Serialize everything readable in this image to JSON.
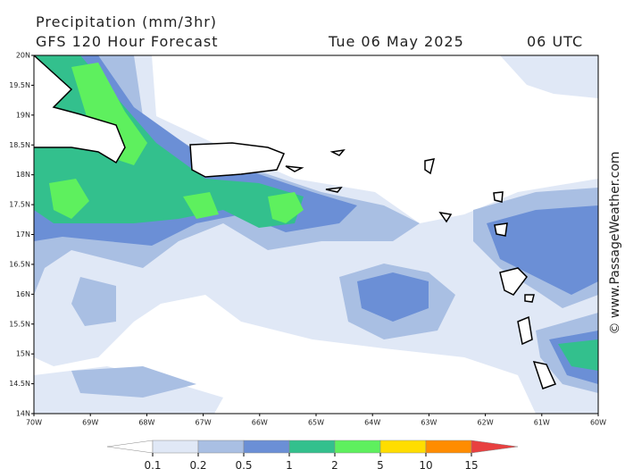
{
  "header": {
    "title": "Precipitation (mm/3hr)",
    "model": "GFS 120 Hour Forecast",
    "date": "Tue 06 May 2025",
    "time": "06 UTC"
  },
  "map": {
    "lat_labels": [
      "20N",
      "19.5N",
      "19N",
      "18.5N",
      "18N",
      "17.5N",
      "17N",
      "16.5N",
      "16N",
      "15.5N",
      "15N",
      "14.5N",
      "14N"
    ],
    "lon_labels": [
      "70W",
      "69W",
      "68W",
      "67W",
      "66W",
      "65W",
      "64W",
      "63W",
      "62W",
      "61W",
      "60W"
    ]
  },
  "legend": {
    "labels": [
      "0.1",
      "0.2",
      "0.5",
      "1",
      "2",
      "5",
      "10",
      "15"
    ],
    "colors": [
      "#ffffff",
      "#e0e8f6",
      "#a9bfe3",
      "#6b8fd6",
      "#33c08d",
      "#5ef05e",
      "#ffdd00",
      "#ff8c00",
      "#e84040"
    ]
  },
  "watermark": "© www.PassageWeather.com"
}
